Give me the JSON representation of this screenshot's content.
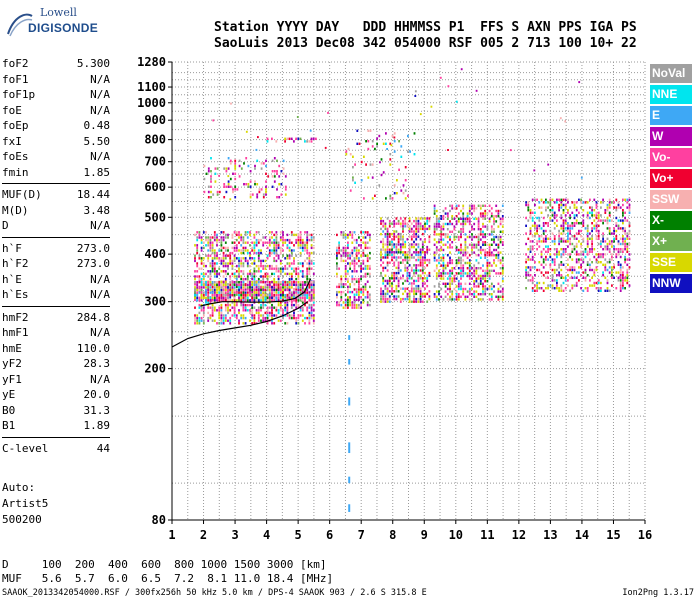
{
  "logo": {
    "line1": "Lowell",
    "line2": "DIGISONDE"
  },
  "header": {
    "labels": "Station YYYY DAY   DDD HHMMSS P1  FFS S AXN PPS IGA PS",
    "values": "SaoLuis 2013 Dec08 342 054000 RSF 005 2 713 100 10+ 22"
  },
  "params": [
    [
      {
        "name": "foF2",
        "value": "5.300"
      },
      {
        "name": "foF1",
        "value": "N/A"
      },
      {
        "name": "foF1p",
        "value": "N/A"
      },
      {
        "name": "foE",
        "value": "N/A"
      },
      {
        "name": "foEp",
        "value": "0.48"
      },
      {
        "name": "fxI",
        "value": "5.50"
      },
      {
        "name": "foEs",
        "value": "N/A"
      },
      {
        "name": "fmin",
        "value": "1.85"
      }
    ],
    [
      {
        "name": "MUF(D)",
        "value": "18.44"
      },
      {
        "name": "M(D)",
        "value": "3.48"
      },
      {
        "name": "D",
        "value": "N/A"
      }
    ],
    [
      {
        "name": "h`F",
        "value": "273.0"
      },
      {
        "name": "h`F2",
        "value": "273.0"
      },
      {
        "name": "h`E",
        "value": "N/A"
      },
      {
        "name": "h`Es",
        "value": "N/A"
      }
    ],
    [
      {
        "name": "hmF2",
        "value": "284.8"
      },
      {
        "name": "hmF1",
        "value": "N/A"
      },
      {
        "name": "hmE",
        "value": "110.0"
      },
      {
        "name": "yF2",
        "value": "28.3"
      },
      {
        "name": "yF1",
        "value": "N/A"
      },
      {
        "name": "yE",
        "value": "20.0"
      },
      {
        "name": "B0",
        "value": "31.3"
      },
      {
        "name": "B1",
        "value": "1.89"
      }
    ],
    [
      {
        "name": "C-level",
        "value": "44"
      }
    ]
  ],
  "auto": {
    "line1": "Auto:",
    "line2": "Artist5",
    "line3": "500200"
  },
  "legend": [
    {
      "label": "NoVal",
      "color": "#a0a0a0"
    },
    {
      "label": "NNE",
      "color": "#00e5ee"
    },
    {
      "label": "E",
      "color": "#3ea8f5"
    },
    {
      "label": "W",
      "color": "#b000b0"
    },
    {
      "label": "Vo-",
      "color": "#ff40a0"
    },
    {
      "label": "Vo+",
      "color": "#f00030"
    },
    {
      "label": "SSW",
      "color": "#f7b0b0"
    },
    {
      "label": "X-",
      "color": "#008000"
    },
    {
      "label": "X+",
      "color": "#70b050"
    },
    {
      "label": "SSE",
      "color": "#d8d800"
    },
    {
      "label": "NNW",
      "color": "#1010c0"
    }
  ],
  "dtable": {
    "row1": "D     100  200  400  600  800 1000 1500 3000 [km]",
    "row2": "MUF   5.6  5.7  6.0  6.5  7.2  8.1 11.0 18.4 [MHz]"
  },
  "footer": {
    "left": "SAAOK_2013342054000.RSF / 300fx256h 50 kHz 5.0 km / DPS-4 SAAOK 903 / 2.6 S 315.8 E",
    "right": "Ion2Png 1.3.17"
  },
  "chart_data": {
    "type": "scatter",
    "xlim": [
      1,
      16
    ],
    "ylim": [
      80,
      1280
    ],
    "ylog": true,
    "x_ticks": [
      1,
      2,
      3,
      4,
      5,
      6,
      7,
      8,
      9,
      10,
      11,
      12,
      13,
      14,
      15,
      16
    ],
    "y_ticks": [
      80,
      200,
      300,
      400,
      500,
      600,
      700,
      800,
      900,
      1000,
      1100,
      1280
    ],
    "grid": true,
    "profile_curve": {
      "x": [
        1.0,
        1.5,
        2.0,
        2.5,
        3.0,
        3.5,
        4.0,
        4.5,
        5.0,
        5.3
      ],
      "y": [
        228,
        240,
        247,
        252,
        256,
        260,
        266,
        275,
        288,
        300
      ]
    },
    "trace_curve": {
      "x": [
        1.9,
        2.2,
        2.6,
        3.0,
        3.5,
        4.0,
        4.5,
        4.9,
        5.2,
        5.4
      ],
      "y": [
        292,
        296,
        300,
        300,
        299,
        299,
        301,
        306,
        318,
        345
      ]
    },
    "echo_clusters": [
      {
        "x": [
          1.7,
          5.5
        ],
        "y": [
          265,
          460
        ],
        "density": 0.55
      },
      {
        "x": [
          1.7,
          5.5
        ],
        "y": [
          300,
          340
        ],
        "density": 0.9
      },
      {
        "x": [
          6.2,
          7.3
        ],
        "y": [
          290,
          460
        ],
        "density": 0.55
      },
      {
        "x": [
          7.6,
          9.2
        ],
        "y": [
          300,
          500
        ],
        "density": 0.6
      },
      {
        "x": [
          9.3,
          11.5
        ],
        "y": [
          305,
          540
        ],
        "density": 0.5
      },
      {
        "x": [
          12.2,
          15.5
        ],
        "y": [
          320,
          560
        ],
        "density": 0.45
      },
      {
        "x": [
          2.0,
          4.6
        ],
        "y": [
          560,
          720
        ],
        "density": 0.2
      },
      {
        "x": [
          6.5,
          8.8
        ],
        "y": [
          560,
          850
        ],
        "density": 0.08
      },
      {
        "x": [
          4.0,
          5.6
        ],
        "y": [
          790,
          810
        ],
        "density": 0.3
      }
    ],
    "vertical_marks": {
      "x": 6.62,
      "y": [
        80,
        245
      ]
    }
  }
}
